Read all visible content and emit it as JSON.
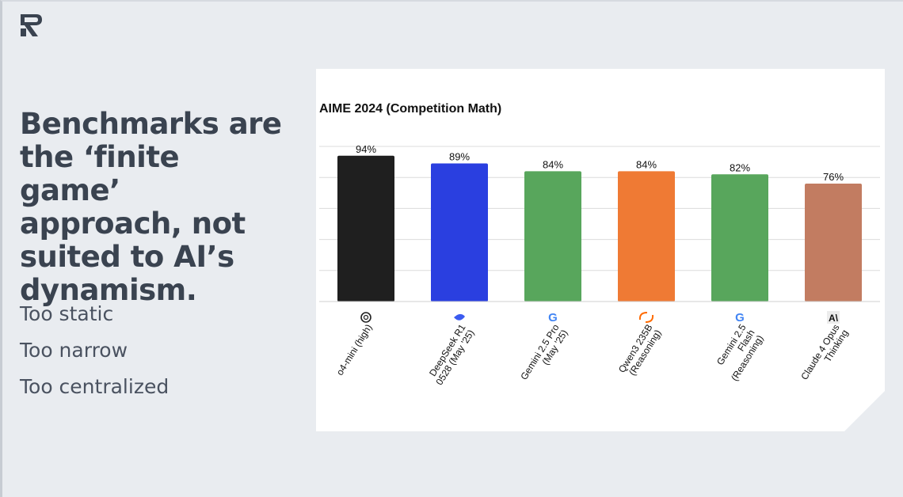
{
  "slide": {
    "headline": "Benchmarks are the ‘finite game’ approach, not suited to AI’s dynamism.",
    "points": [
      "Too static",
      "Too narrow",
      "Too centralized"
    ]
  },
  "chart_data": {
    "type": "bar",
    "title": "AIME 2024 (Competition Math)",
    "xlabel": "",
    "ylabel": "",
    "ylim": [
      0,
      100
    ],
    "grid": true,
    "categories": [
      "o4-mini (high)",
      "DeepSeek R1 0528 (May '25)",
      "Gemini 2.5 Pro (May '25)",
      "Qwen3 235B (Reasoning)",
      "Gemini 2.5 Flash (Reasoning)",
      "Claude 4 Opus Thinking"
    ],
    "label_lines": [
      [
        "o4-mini (high)"
      ],
      [
        "DeepSeek R1",
        "0528 (May '25)"
      ],
      [
        "Gemini 2.5 Pro",
        "(May '25)"
      ],
      [
        "Qwen3 235B",
        "(Reasoning)"
      ],
      [
        "Gemini 2.5",
        "Flash",
        "(Reasoning)"
      ],
      [
        "Claude 4 Opus",
        "Thinking"
      ]
    ],
    "values": [
      94,
      89,
      84,
      84,
      82,
      76
    ],
    "data_labels": [
      "94%",
      "89%",
      "84%",
      "84%",
      "82%",
      "76%"
    ],
    "colors": [
      "#1f1f1f",
      "#2a3fe0",
      "#58a65c",
      "#ef7a34",
      "#58a65c",
      "#c27c61"
    ],
    "icons": [
      "openai-icon",
      "deepseek-icon",
      "google-icon",
      "alibaba-icon",
      "google-icon",
      "anthropic-icon"
    ]
  }
}
